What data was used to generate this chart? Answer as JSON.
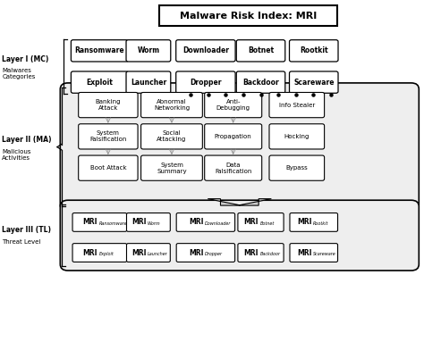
{
  "title": "Malware Risk Index: MRI",
  "background_color": "#ffffff",
  "layer1_row1": [
    "Ransomware",
    "Worm",
    "Downloader",
    "Botnet",
    "Rootkit"
  ],
  "layer1_row2": [
    "Exploit",
    "Launcher",
    "Dropper",
    "Backdoor",
    "Scareware"
  ],
  "layer2_row1": [
    "Banking\nAttack",
    "Abnormal\nNetworking",
    "Anti-\nDebugging",
    "Info Stealer"
  ],
  "layer2_row2": [
    "System\nFalsification",
    "Social\nAttacking",
    "Propagation",
    "Hocking"
  ],
  "layer2_row3": [
    "Boot Attack",
    "System\nSummary",
    "Data\nFalsification",
    "Bypass"
  ],
  "layer3_row1_sub": [
    "Ransomware",
    "Worm",
    "Downloader",
    "Botnet",
    "Rootkit"
  ],
  "layer3_row2_sub": [
    "Exploit",
    "Launcher",
    "Dropper",
    "Backdoor",
    "Scareware"
  ],
  "label_layer1_bold": "Layer I (MC)",
  "label_layer1_normal": "Malwares\nCategories",
  "label_layer2_bold": "Layer II (MA)",
  "label_layer2_normal": "Malicious\nActivities",
  "label_layer3_bold": "Layer III (TL)",
  "label_layer3_normal": "Threat Level"
}
